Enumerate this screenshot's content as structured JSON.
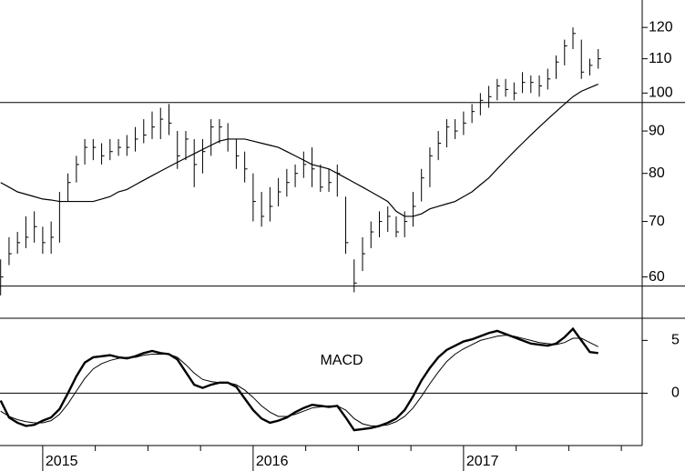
{
  "chart_data": [
    {
      "type": "ohlc",
      "log_scale": true,
      "color": "#000000",
      "x": [
        2014.8,
        2014.84,
        2014.88,
        2014.92,
        2014.96,
        2015,
        2015.04,
        2015.08,
        2015.12,
        2015.16,
        2015.2,
        2015.24,
        2015.28,
        2015.32,
        2015.36,
        2015.4,
        2015.44,
        2015.48,
        2015.52,
        2015.56,
        2015.6,
        2015.64,
        2015.68,
        2015.72,
        2015.76,
        2015.8,
        2015.84,
        2015.88,
        2015.92,
        2015.96,
        2016,
        2016.04,
        2016.08,
        2016.12,
        2016.16,
        2016.2,
        2016.24,
        2016.28,
        2016.32,
        2016.36,
        2016.4,
        2016.44,
        2016.48,
        2016.52,
        2016.56,
        2016.6,
        2016.64,
        2016.68,
        2016.72,
        2016.76,
        2016.8,
        2016.84,
        2016.88,
        2016.92,
        2016.96,
        2017,
        2017.04,
        2017.08,
        2017.12,
        2017.16,
        2017.2,
        2017.24,
        2017.28,
        2017.32,
        2017.36,
        2017.4,
        2017.44,
        2017.48,
        2017.52,
        2017.56,
        2017.6,
        2017.64
      ],
      "high": [
        63,
        67,
        68,
        71,
        72,
        69,
        70,
        76,
        80,
        84,
        88,
        88,
        87,
        88,
        88,
        89,
        91,
        93,
        95,
        96,
        97,
        90,
        90,
        88,
        88,
        93,
        93,
        92,
        88,
        85,
        80,
        76,
        77,
        79,
        81,
        82,
        85,
        86,
        82,
        81,
        82,
        75,
        63,
        67,
        70,
        72,
        73,
        71,
        72,
        76,
        81,
        86,
        90,
        93,
        93,
        95,
        97,
        100,
        102,
        104,
        104,
        103,
        106,
        105,
        105,
        107,
        111,
        116,
        120,
        116,
        110,
        113
      ],
      "low": [
        57,
        62,
        64,
        65,
        66,
        64,
        64,
        66,
        74,
        78,
        82,
        83,
        82,
        83,
        84,
        84,
        85,
        87,
        88,
        88,
        89,
        81,
        83,
        77,
        80,
        84,
        87,
        85,
        81,
        78,
        70,
        69,
        70,
        73,
        75,
        77,
        79,
        77,
        76,
        76,
        75,
        64,
        57.5,
        61,
        65,
        67,
        68,
        67,
        67,
        69,
        74,
        77,
        83,
        86,
        88,
        89,
        92,
        94,
        96,
        98,
        99,
        98,
        100,
        100,
        99,
        101,
        104,
        108,
        113,
        104,
        105,
        107
      ],
      "close": [
        60,
        64,
        66,
        67,
        69,
        66,
        67,
        74,
        78,
        82,
        86,
        86,
        84,
        85,
        86,
        86,
        88,
        89,
        91,
        93,
        92,
        84,
        88,
        82,
        85,
        91,
        91,
        88,
        84,
        81,
        74,
        71,
        73,
        76,
        78,
        80,
        82,
        81,
        77,
        78,
        80,
        66,
        59,
        64,
        68,
        70,
        71,
        68,
        70,
        73,
        79,
        84,
        87,
        91,
        90,
        92,
        95,
        98,
        99,
        102,
        101,
        100,
        103,
        103,
        102,
        104,
        109,
        114,
        118,
        106,
        108,
        110
      ],
      "moving_average": [
        78,
        77,
        76,
        75.5,
        75,
        74.5,
        74.3,
        74,
        74,
        74,
        74,
        74,
        74.5,
        75,
        76,
        76.5,
        77.5,
        78.5,
        79.5,
        80.5,
        81.5,
        82.5,
        83.5,
        84.5,
        85.5,
        86.5,
        87.5,
        88,
        88,
        88,
        87.5,
        87,
        86.5,
        86,
        85,
        84,
        83,
        82,
        81.5,
        81,
        80,
        79,
        78,
        77,
        76,
        75,
        74,
        72,
        71,
        71,
        71.5,
        72.5,
        73,
        73.5,
        74,
        75,
        76,
        77.5,
        79,
        81,
        83,
        85,
        87,
        89,
        91,
        93,
        95,
        97,
        99,
        100.5,
        101.5,
        102.5
      ],
      "hlines": [
        97.4,
        58.5
      ],
      "xlim": [
        2014.797,
        2017.849
      ],
      "ylim": [
        53.5,
        129.5
      ],
      "yticks": [
        60,
        70,
        80,
        90,
        100,
        110,
        120
      ]
    },
    {
      "type": "line",
      "title": "MACD",
      "color": "#000000",
      "x": [
        2014.8,
        2014.84,
        2014.88,
        2014.92,
        2014.96,
        2015,
        2015.04,
        2015.08,
        2015.12,
        2015.16,
        2015.2,
        2015.24,
        2015.28,
        2015.32,
        2015.36,
        2015.4,
        2015.44,
        2015.48,
        2015.52,
        2015.56,
        2015.6,
        2015.64,
        2015.68,
        2015.72,
        2015.76,
        2015.8,
        2015.84,
        2015.88,
        2015.92,
        2015.96,
        2016,
        2016.04,
        2016.08,
        2016.12,
        2016.16,
        2016.2,
        2016.24,
        2016.28,
        2016.32,
        2016.36,
        2016.4,
        2016.44,
        2016.48,
        2016.52,
        2016.56,
        2016.6,
        2016.64,
        2016.68,
        2016.72,
        2016.76,
        2016.8,
        2016.84,
        2016.88,
        2016.92,
        2016.96,
        2017,
        2017.04,
        2017.08,
        2017.12,
        2017.16,
        2017.2,
        2017.24,
        2017.28,
        2017.32,
        2017.36,
        2017.4,
        2017.44,
        2017.48,
        2017.52,
        2017.56,
        2017.6,
        2017.64
      ],
      "macd": [
        -0.7,
        -2.3,
        -2.8,
        -3.1,
        -3.0,
        -2.6,
        -2.3,
        -1.5,
        0.0,
        1.6,
        2.9,
        3.4,
        3.5,
        3.6,
        3.4,
        3.3,
        3.5,
        3.8,
        4.0,
        3.8,
        3.7,
        3.2,
        2.0,
        0.8,
        0.5,
        0.8,
        1.0,
        1.0,
        0.6,
        -0.5,
        -1.6,
        -2.4,
        -2.8,
        -2.6,
        -2.3,
        -1.8,
        -1.4,
        -1.1,
        -1.2,
        -1.3,
        -1.2,
        -2.3,
        -3.5,
        -3.4,
        -3.3,
        -3.1,
        -2.8,
        -2.4,
        -1.6,
        -0.3,
        1.2,
        2.4,
        3.4,
        4.1,
        4.5,
        4.9,
        5.1,
        5.4,
        5.7,
        5.9,
        5.6,
        5.3,
        5.0,
        4.7,
        4.6,
        4.5,
        4.7,
        5.3,
        6.1,
        5.0,
        3.9,
        3.8
      ],
      "signal": [
        -1.7,
        -2.2,
        -2.5,
        -2.7,
        -2.8,
        -2.8,
        -2.6,
        -2.0,
        -1.0,
        0.2,
        1.4,
        2.3,
        2.8,
        3.1,
        3.3,
        3.4,
        3.4,
        3.6,
        3.7,
        3.7,
        3.7,
        3.4,
        2.7,
        1.9,
        1.3,
        1.1,
        1.0,
        1.0,
        0.8,
        0.3,
        -0.4,
        -1.2,
        -1.8,
        -2.2,
        -2.2,
        -2.0,
        -1.7,
        -1.4,
        -1.3,
        -1.2,
        -1.2,
        -1.6,
        -2.4,
        -2.9,
        -3.1,
        -3.1,
        -3.0,
        -2.7,
        -2.2,
        -1.4,
        -0.3,
        0.9,
        2.0,
        3.0,
        3.7,
        4.2,
        4.6,
        5.0,
        5.2,
        5.4,
        5.5,
        5.4,
        5.2,
        5.0,
        4.8,
        4.7,
        4.6,
        4.8,
        5.2,
        5.2,
        4.8,
        4.4
      ],
      "hlines": [
        0
      ],
      "xlim": [
        2014.797,
        2017.849
      ],
      "ylim": [
        -4.7,
        7.1
      ],
      "yticks": [
        0,
        5
      ],
      "xticks": [
        2015,
        2016,
        2017
      ]
    }
  ]
}
